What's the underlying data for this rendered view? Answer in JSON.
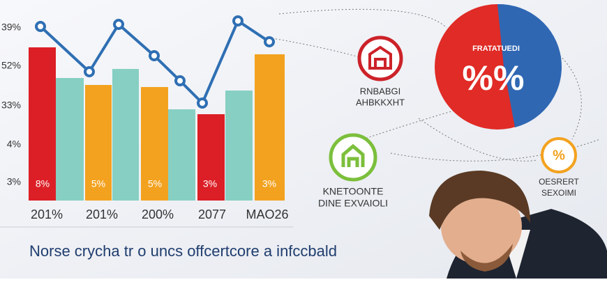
{
  "y_labels": [
    "39%",
    "52%",
    "33%",
    "4%",
    "3%"
  ],
  "bar_labels": [
    "8%",
    "5%",
    "5%",
    "3%",
    "3%"
  ],
  "x_labels": [
    "201%",
    "201%",
    "200%",
    "2077",
    "MAO26"
  ],
  "icons": [
    {
      "lines": [
        "RNBABGI",
        "AHBKKXHT"
      ]
    },
    {
      "lines": [
        "KNETOONTE",
        "DINE EXVAIOLI"
      ]
    },
    {
      "lines": [
        "OESRERT",
        "SEXOIMI"
      ]
    }
  ],
  "pie": {
    "title": "FRATATUEDI",
    "symbol": "%%"
  },
  "heading": "Norse crycha tr o uncs offcertcore a infccbald"
}
